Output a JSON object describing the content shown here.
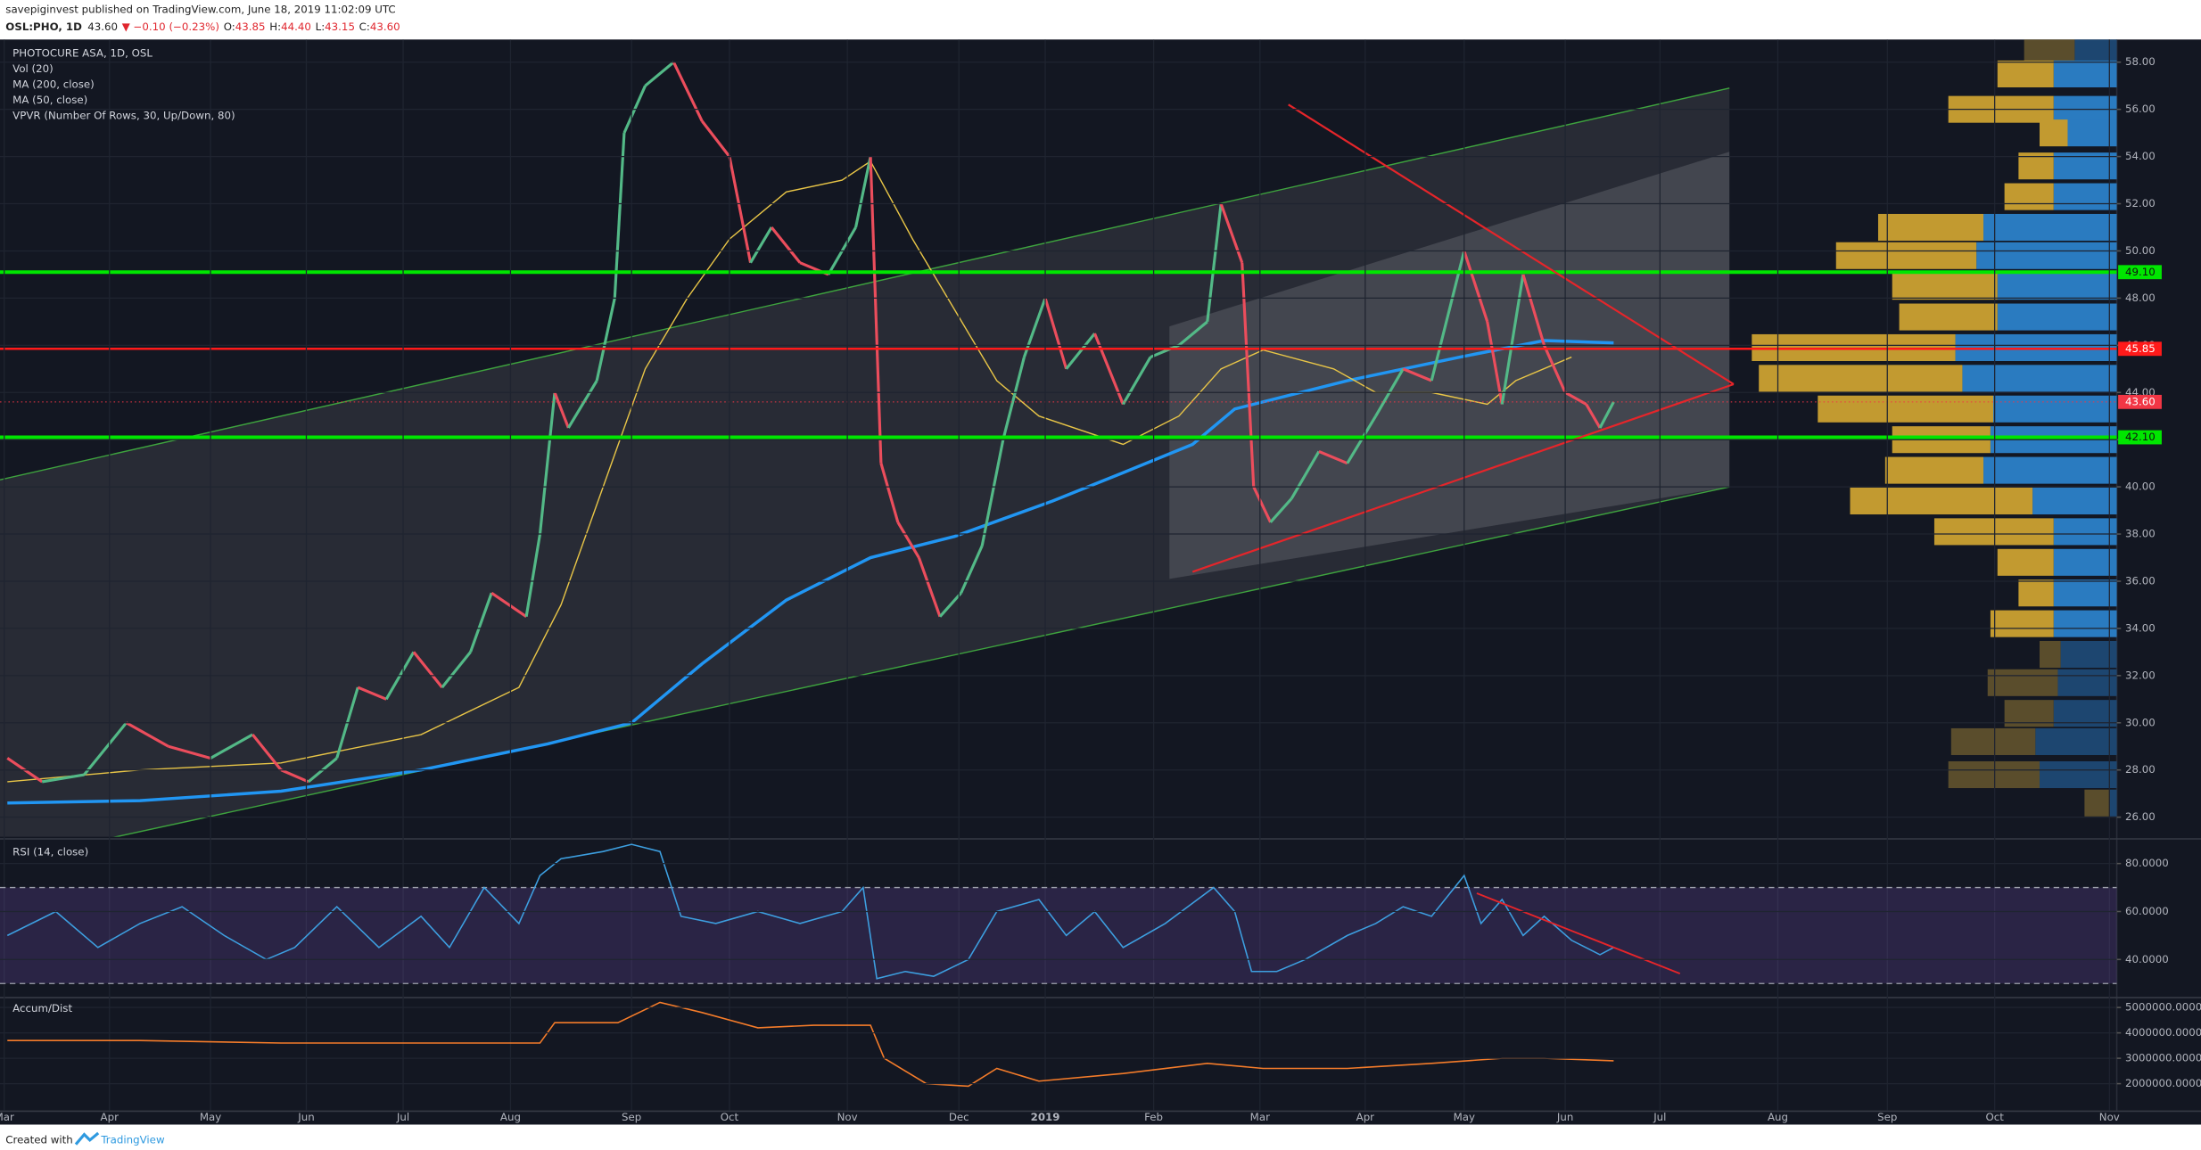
{
  "header": {
    "publisher": "savepiginvest published on TradingView.com, June 18, 2019 11:02:09 UTC",
    "symbol": "OSL:PHO, 1D",
    "last": "43.60",
    "change": "▼ −0.10 (−0.23%)",
    "ohlc": [
      {
        "label": "O:",
        "value": "43.85"
      },
      {
        "label": "H:",
        "value": "44.40"
      },
      {
        "label": "L:",
        "value": "43.15"
      },
      {
        "label": "C:",
        "value": "43.60"
      }
    ]
  },
  "footer": {
    "created": "Created with",
    "brand": "TradingView"
  },
  "chart_data": [
    {
      "type": "line",
      "title": "PHOTOCURE ASA, 1D, OSL",
      "indicators": [
        "Vol (20)",
        "MA (200, close)",
        "MA (50, close)",
        "VPVR (Number Of Rows, 30, Up/Down, 80)"
      ],
      "xlim": [
        -0.04,
        20.07
      ],
      "ylim": [
        25.17,
        58.96
      ],
      "xticks": [
        {
          "value": 0,
          "label": "Mar"
        },
        {
          "value": 1,
          "label": "Apr"
        },
        {
          "value": 1.96,
          "label": "May"
        },
        {
          "value": 2.87,
          "label": "Jun"
        },
        {
          "value": 3.79,
          "label": "Jul"
        },
        {
          "value": 4.81,
          "label": "Aug"
        },
        {
          "value": 5.96,
          "label": "Sep"
        },
        {
          "value": 6.89,
          "label": "Oct"
        },
        {
          "value": 8.01,
          "label": "Nov"
        },
        {
          "value": 9.07,
          "label": "Dec"
        },
        {
          "value": 9.89,
          "label": "2019"
        },
        {
          "value": 10.92,
          "label": "Feb"
        },
        {
          "value": 11.93,
          "label": "Mar"
        },
        {
          "value": 12.93,
          "label": "Apr"
        },
        {
          "value": 13.87,
          "label": "May"
        },
        {
          "value": 14.83,
          "label": "Jun"
        },
        {
          "value": 15.73,
          "label": "Jul"
        },
        {
          "value": 16.85,
          "label": "Aug"
        },
        {
          "value": 17.89,
          "label": "Sep"
        },
        {
          "value": 18.91,
          "label": "Oct"
        },
        {
          "value": 20,
          "label": "Nov"
        }
      ],
      "yticks": [
        {
          "value": 26,
          "label": "26.00"
        },
        {
          "value": 28,
          "label": "28.00"
        },
        {
          "value": 30,
          "label": "30.00"
        },
        {
          "value": 32,
          "label": "32.00"
        },
        {
          "value": 34,
          "label": "34.00"
        },
        {
          "value": 36,
          "label": "36.00"
        },
        {
          "value": 38,
          "label": "38.00"
        },
        {
          "value": 40,
          "label": "40.00"
        },
        {
          "value": 42,
          "label": "42.00"
        },
        {
          "value": 44,
          "label": "44.00"
        },
        {
          "value": 46,
          "label": "46.00"
        },
        {
          "value": 48,
          "label": "48.00"
        },
        {
          "value": 50,
          "label": "50.00"
        },
        {
          "value": 52,
          "label": "52.00"
        },
        {
          "value": 54,
          "label": "54.00"
        },
        {
          "value": 56,
          "label": "56.00"
        },
        {
          "value": 58,
          "label": "58.00"
        }
      ],
      "grid": true,
      "price": {
        "up_color": "#53b987",
        "down_color": "#eb4d5c",
        "x": [
          0.03,
          0.36,
          0.76,
          1.16,
          1.56,
          1.96,
          2.36,
          2.63,
          2.89,
          3.16,
          3.36,
          3.63,
          3.89,
          4.16,
          4.43,
          4.63,
          4.96,
          5.09,
          5.23,
          5.36,
          5.63,
          5.8,
          5.89,
          6.09,
          6.36,
          6.63,
          6.89,
          7.09,
          7.29,
          7.56,
          7.83,
          8.09,
          8.23,
          8.33,
          8.49,
          8.69,
          8.89,
          9.09,
          9.29,
          9.49,
          9.69,
          9.89,
          10.09,
          10.36,
          10.63,
          10.89,
          11.16,
          11.43,
          11.56,
          11.76,
          11.87,
          12.03,
          12.23,
          12.49,
          12.76,
          13.03,
          13.29,
          13.56,
          13.87,
          14.09,
          14.23,
          14.43,
          14.63,
          14.83,
          15.03,
          15.16,
          15.29
        ],
        "values": [
          28.5,
          27.5,
          27.8,
          30,
          29,
          28.5,
          29.5,
          28,
          27.5,
          28.5,
          31.5,
          31,
          33,
          31.5,
          33,
          35.5,
          34.5,
          38,
          44,
          42.5,
          44.5,
          48,
          55,
          57,
          58,
          55.5,
          54,
          49.5,
          51,
          49.5,
          49,
          51,
          54,
          41,
          38.5,
          37,
          34.5,
          35.5,
          37.5,
          42,
          45.5,
          48,
          45,
          46.5,
          43.5,
          45.5,
          46,
          47,
          52,
          49.5,
          40,
          38.5,
          39.5,
          41.5,
          41,
          43,
          45,
          44.5,
          50,
          47,
          43.5,
          49,
          46,
          44,
          43.5,
          42.5,
          43.6
        ]
      },
      "series": [
        {
          "name": "MA (200, close)",
          "color": "#2196f3",
          "width": 2.2,
          "x": [
            0.03,
            1.29,
            2.63,
            3.96,
            5.16,
            5.96,
            6.63,
            7.43,
            8.23,
            9.03,
            9.96,
            10.63,
            11.29,
            11.69,
            12.76,
            13.83,
            14.63,
            15.29
          ],
          "values": [
            26.6,
            26.7,
            27.1,
            28.0,
            29.1,
            30.0,
            32.5,
            35.2,
            37.0,
            37.9,
            39.4,
            40.6,
            41.8,
            43.3,
            44.5,
            45.5,
            46.2,
            46.1
          ]
        },
        {
          "name": "MA (50, close)",
          "color": "#e8c547",
          "width": 0.9,
          "x": [
            0.03,
            1.29,
            2.63,
            3.96,
            4.89,
            5.29,
            5.69,
            6.09,
            6.49,
            6.89,
            7.43,
            7.96,
            8.23,
            8.63,
            9.03,
            9.43,
            9.83,
            10.63,
            11.16,
            11.56,
            11.96,
            12.63,
            13.03,
            13.56,
            14.09,
            14.36,
            14.89
          ],
          "values": [
            27.5,
            28.0,
            28.3,
            29.5,
            31.5,
            35,
            40,
            45,
            48,
            50.5,
            52.5,
            53.0,
            53.8,
            50.5,
            47.5,
            44.5,
            43.0,
            41.8,
            43.0,
            45.0,
            45.8,
            45.0,
            44.0,
            44.0,
            43.5,
            44.5,
            45.5
          ]
        }
      ],
      "levels": [
        {
          "value": 49.1,
          "label": "49.10",
          "color": "#00e600",
          "width": 2.5
        },
        {
          "value": 45.85,
          "label": "45.85",
          "color": "#ff1a1a",
          "width": 1.6
        },
        {
          "value": 43.6,
          "label": "43.60",
          "color": "#f23645",
          "width": 0.6,
          "style": "dotted"
        },
        {
          "value": 42.1,
          "label": "42.10",
          "color": "#00e600",
          "width": 2.5
        }
      ],
      "channel": {
        "color": "#3ea33e",
        "upper": [
          [
            -0.04,
            40.3
          ],
          [
            16.39,
            56.9
          ]
        ],
        "lower": [
          [
            -0.04,
            24.1
          ],
          [
            16.39,
            40.0
          ]
        ]
      },
      "highlight": [
        [
          11.07,
          46.8
        ],
        [
          16.39,
          54.2
        ],
        [
          16.39,
          40.0
        ],
        [
          11.07,
          36.1
        ]
      ],
      "trendlines": [
        {
          "color": "#e5252a",
          "points": [
            [
              12.2,
              56.2
            ],
            [
              16.43,
              44.35
            ]
          ]
        },
        {
          "color": "#e5252a",
          "points": [
            [
              11.29,
              36.4
            ],
            [
              16.43,
              44.35
            ]
          ]
        }
      ],
      "profile": {
        "up_color": "#2a7bc0",
        "down_color": "#c29a30",
        "up_color_out": "#1d4670",
        "down_color_out": "#5a4d2c",
        "value_area": [
          33.6,
          58.0
        ],
        "rows": [
          {
            "price": 58.5,
            "up": 30,
            "down": 36
          },
          {
            "price": 57.5,
            "up": 45,
            "down": 40
          },
          {
            "price": 56.0,
            "up": 45,
            "down": 75
          },
          {
            "price": 55.0,
            "up": 35,
            "down": 20
          },
          {
            "price": 53.6,
            "up": 45,
            "down": 25
          },
          {
            "price": 52.3,
            "up": 45,
            "down": 35
          },
          {
            "price": 51.0,
            "up": 95,
            "down": 75
          },
          {
            "price": 49.8,
            "up": 100,
            "down": 100
          },
          {
            "price": 48.5,
            "up": 85,
            "down": 75
          },
          {
            "price": 47.2,
            "up": 85,
            "down": 70
          },
          {
            "price": 45.9,
            "up": 115,
            "down": 145
          },
          {
            "price": 44.6,
            "up": 110,
            "down": 145
          },
          {
            "price": 43.3,
            "up": 88,
            "down": 125
          },
          {
            "price": 42.0,
            "up": 90,
            "down": 70
          },
          {
            "price": 40.7,
            "up": 95,
            "down": 70
          },
          {
            "price": 39.4,
            "up": 60,
            "down": 130
          },
          {
            "price": 38.1,
            "up": 45,
            "down": 85
          },
          {
            "price": 36.8,
            "up": 45,
            "down": 40
          },
          {
            "price": 35.5,
            "up": 45,
            "down": 25
          },
          {
            "price": 34.2,
            "up": 45,
            "down": 45
          },
          {
            "price": 32.9,
            "up": 40,
            "down": 15
          },
          {
            "price": 31.7,
            "up": 42,
            "down": 50
          },
          {
            "price": 30.4,
            "up": 45,
            "down": 35
          },
          {
            "price": 29.2,
            "up": 58,
            "down": 60
          },
          {
            "price": 27.8,
            "up": 55,
            "down": 65
          },
          {
            "price": 26.6,
            "up": 5,
            "down": 18
          }
        ]
      }
    },
    {
      "type": "line",
      "title": "RSI (14, close)",
      "xlim": [
        -0.04,
        20.07
      ],
      "ylim": [
        24.7,
        89.4
      ],
      "yticks": [
        {
          "value": 40,
          "label": "40.0000"
        },
        {
          "value": 60,
          "label": "60.0000"
        },
        {
          "value": 80,
          "label": "80.0000"
        }
      ],
      "band": [
        30,
        70
      ],
      "band_color": "#7e57c2",
      "series": [
        {
          "name": "RSI (14, close)",
          "color": "#3d9fe0",
          "x": [
            0.03,
            0.49,
            0.89,
            1.29,
            1.69,
            2.09,
            2.49,
            2.76,
            3.16,
            3.56,
            3.96,
            4.23,
            4.56,
            4.89,
            5.09,
            5.29,
            5.69,
            5.96,
            6.23,
            6.43,
            6.76,
            7.16,
            7.56,
            7.96,
            8.16,
            8.29,
            8.56,
            8.83,
            9.16,
            9.43,
            9.83,
            10.09,
            10.36,
            10.63,
            11.03,
            11.49,
            11.69,
            11.85,
            12.09,
            12.36,
            12.76,
            13.03,
            13.29,
            13.56,
            13.87,
            14.03,
            14.23,
            14.43,
            14.63,
            14.89,
            15.16,
            15.29
          ],
          "values": [
            50,
            60,
            45,
            55,
            62,
            50,
            40,
            45,
            62,
            45,
            58,
            45,
            70,
            55,
            75,
            82,
            85,
            88,
            85,
            58,
            55,
            60,
            55,
            60,
            70,
            32,
            35,
            33,
            40,
            60,
            65,
            50,
            60,
            45,
            55,
            70,
            60,
            35,
            35,
            40,
            50,
            55,
            62,
            58,
            75,
            55,
            65,
            50,
            58,
            48,
            42,
            45
          ]
        }
      ],
      "trendlines": [
        {
          "color": "#e5252a",
          "points": [
            [
              13.99,
              67.6
            ],
            [
              15.92,
              34.1
            ]
          ]
        }
      ]
    },
    {
      "type": "line",
      "title": "Accum/Dist",
      "xlim": [
        -0.04,
        20.07
      ],
      "ylim": [
        944000,
        5333000
      ],
      "yticks": [
        {
          "value": 2000000,
          "label": "2000000.0000"
        },
        {
          "value": 3000000,
          "label": "3000000.0000"
        },
        {
          "value": 4000000,
          "label": "4000000.0000"
        },
        {
          "value": 5000000,
          "label": "5000000.0000"
        }
      ],
      "series": [
        {
          "name": "Accum/Dist",
          "color": "#f57c2a",
          "x": [
            0.03,
            1.29,
            2.63,
            3.96,
            5.09,
            5.23,
            5.83,
            6.23,
            6.63,
            7.16,
            7.69,
            8.23,
            8.36,
            8.76,
            9.16,
            9.43,
            9.83,
            10.63,
            11.43,
            11.96,
            12.76,
            13.56,
            14.23,
            14.63,
            15.29
          ],
          "values": [
            3700000,
            3700000,
            3600000,
            3600000,
            3600000,
            4400000,
            4400000,
            5200000,
            4800000,
            4200000,
            4300000,
            4300000,
            3000000,
            2000000,
            1900000,
            2600000,
            2100000,
            2400000,
            2800000,
            2600000,
            2600000,
            2800000,
            3000000,
            3000000,
            2900000
          ]
        }
      ]
    }
  ]
}
